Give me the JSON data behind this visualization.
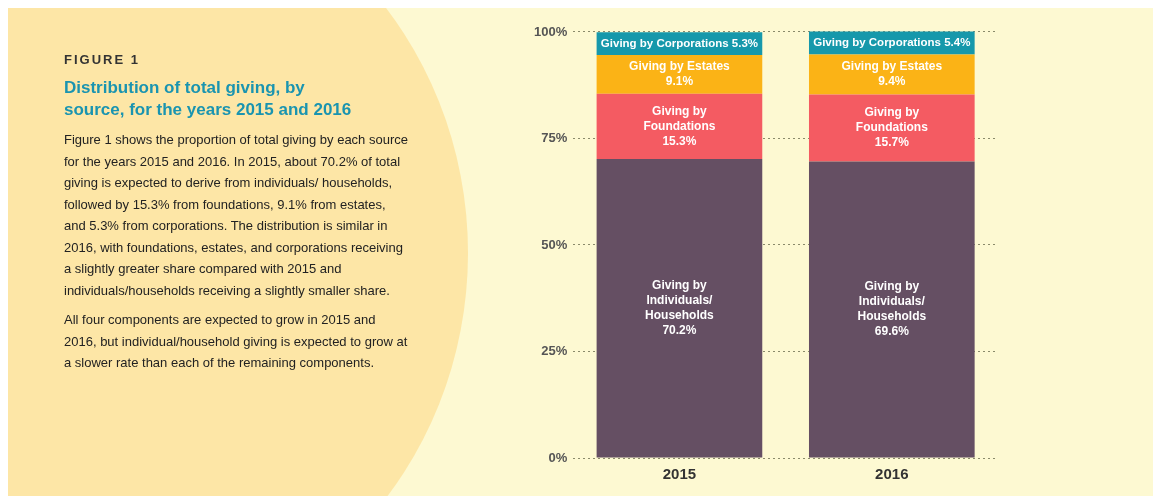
{
  "chart_data": {
    "type": "bar",
    "title": "Distribution of total giving, by source, for the years 2015 and 2016",
    "annotations": [
      "FIGURE 1",
      "Figure 1 shows the proportion of total giving by each source for the years 2015 and 2016. In 2015, about 70.2% of total giving is expected to derive from individuals/ households, followed by 15.3% from foundations, 9.1% from estates, and 5.3% from corporations. The distribution is similar in 2016, with foundations, estates, and corporations receiving a slightly greater share compared with 2015 and individuals/households receiving a slightly smaller share.",
      "All four components are expected to grow in 2015 and 2016, but individual/household giving is expected to grow at a slower rate than each of the remaining components."
    ],
    "categories": [
      "2015",
      "2016"
    ],
    "stacked": true,
    "series": [
      {
        "name": "Giving by Individuals/Households",
        "color": "#654f63",
        "values": [
          70.2,
          69.6
        ],
        "value_labels": [
          "70.2%",
          "69.6%"
        ]
      },
      {
        "name": "Giving by Foundations",
        "color": "#f45b62",
        "values": [
          15.3,
          15.7
        ],
        "value_labels": [
          "15.3%",
          "15.7%"
        ]
      },
      {
        "name": "Giving by Estates",
        "color": "#fbb316",
        "values": [
          9.1,
          9.4
        ],
        "value_labels": [
          "9.1%",
          "9.4%"
        ]
      },
      {
        "name": "Giving by Corporations",
        "color": "#1698ab",
        "values": [
          5.3,
          5.4
        ],
        "value_labels": [
          "5.3%",
          "5.4%"
        ]
      }
    ],
    "ylim": [
      0,
      100.5
    ],
    "yticks": [
      {
        "value": 0,
        "label": "0%"
      },
      {
        "value": 25,
        "label": "25%"
      },
      {
        "value": 50,
        "label": "50%"
      },
      {
        "value": 75,
        "label": "75%"
      },
      {
        "value": 100,
        "label": "100%"
      }
    ],
    "grid": "y",
    "legend": false
  }
}
